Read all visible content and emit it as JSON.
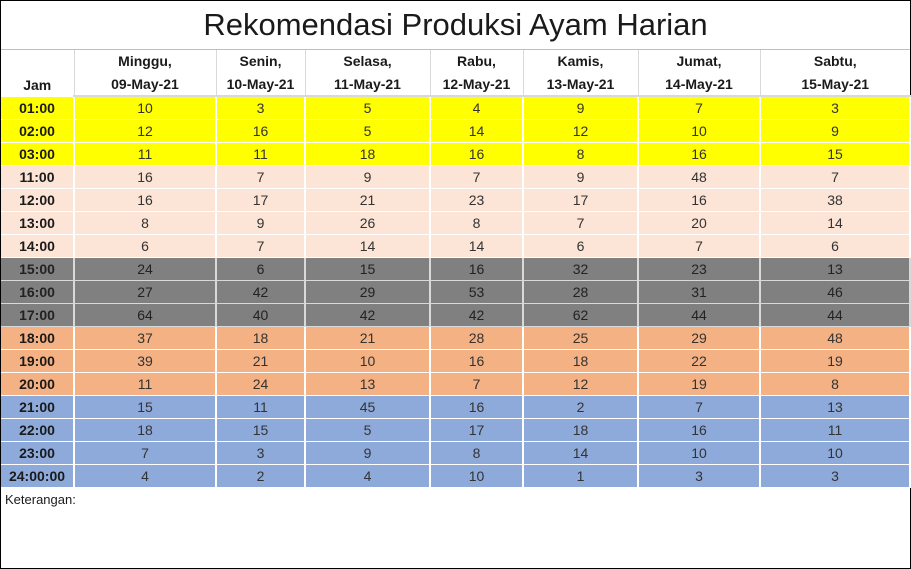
{
  "title": "Rekomendasi Produksi Ayam Harian",
  "jam_label": "Jam",
  "days": [
    {
      "day": "Minggu,",
      "date": "09-May-21"
    },
    {
      "day": "Senin,",
      "date": "10-May-21"
    },
    {
      "day": "Selasa,",
      "date": "11-May-21"
    },
    {
      "day": "Rabu,",
      "date": "12-May-21"
    },
    {
      "day": "Kamis,",
      "date": "13-May-21"
    },
    {
      "day": "Jumat,",
      "date": "14-May-21"
    },
    {
      "day": "Sabtu,",
      "date": "15-May-21"
    }
  ],
  "rows": [
    {
      "hour": "01:00",
      "values": [
        "10",
        "3",
        "5",
        "4",
        "9",
        "7",
        "3"
      ]
    },
    {
      "hour": "02:00",
      "values": [
        "12",
        "16",
        "5",
        "14",
        "12",
        "10",
        "9"
      ]
    },
    {
      "hour": "03:00",
      "values": [
        "11",
        "11",
        "18",
        "16",
        "8",
        "16",
        "15"
      ]
    },
    {
      "hour": "11:00",
      "values": [
        "16",
        "7",
        "9",
        "7",
        "9",
        "48",
        "7"
      ]
    },
    {
      "hour": "12:00",
      "values": [
        "16",
        "17",
        "21",
        "23",
        "17",
        "16",
        "38"
      ]
    },
    {
      "hour": "13:00",
      "values": [
        "8",
        "9",
        "26",
        "8",
        "7",
        "20",
        "14"
      ]
    },
    {
      "hour": "14:00",
      "values": [
        "6",
        "7",
        "14",
        "14",
        "6",
        "7",
        "6"
      ]
    },
    {
      "hour": "15:00",
      "values": [
        "24",
        "6",
        "15",
        "16",
        "32",
        "23",
        "13"
      ]
    },
    {
      "hour": "16:00",
      "values": [
        "27",
        "42",
        "29",
        "53",
        "28",
        "31",
        "46"
      ]
    },
    {
      "hour": "17:00",
      "values": [
        "64",
        "40",
        "42",
        "42",
        "62",
        "44",
        "44"
      ]
    },
    {
      "hour": "18:00",
      "values": [
        "37",
        "18",
        "21",
        "28",
        "25",
        "29",
        "48"
      ]
    },
    {
      "hour": "19:00",
      "values": [
        "39",
        "21",
        "10",
        "16",
        "18",
        "22",
        "19"
      ]
    },
    {
      "hour": "20:00",
      "values": [
        "11",
        "24",
        "13",
        "7",
        "12",
        "19",
        "8"
      ]
    },
    {
      "hour": "21:00",
      "values": [
        "15",
        "11",
        "45",
        "16",
        "2",
        "7",
        "13"
      ]
    },
    {
      "hour": "22:00",
      "values": [
        "18",
        "15",
        "5",
        "17",
        "18",
        "16",
        "11"
      ]
    },
    {
      "hour": "23:00",
      "values": [
        "7",
        "3",
        "9",
        "8",
        "14",
        "10",
        "10"
      ]
    },
    {
      "hour": "24:00:00",
      "values": [
        "4",
        "2",
        "4",
        "10",
        "1",
        "3",
        "3"
      ]
    }
  ],
  "row_colors": {
    "yellow": "#ffff00",
    "peach": "#fce4d6",
    "gray": "#808080",
    "orange": "#f4b183",
    "blue": "#8eaadb"
  },
  "note_label": "Keterangan:"
}
